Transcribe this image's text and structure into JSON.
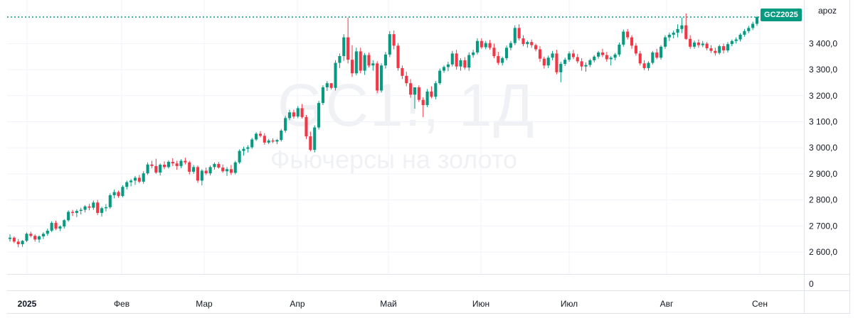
{
  "symbol_tag": "GCZ2025",
  "scale_mode_label": "apoz",
  "watermark": {
    "symbol": "GC1!, 1Д",
    "description": "Фьючерсы на золото"
  },
  "colors": {
    "up": "#089981",
    "down": "#f23645",
    "grid": "#f0f3fa",
    "axis_text": "#131722",
    "last_price_line": "#089981"
  },
  "chart_data": {
    "type": "candlestick",
    "title": "",
    "xlabel": "",
    "ylabel": "",
    "ylim": [
      2560,
      3530
    ],
    "y_ticks": [
      2600,
      2700,
      2800,
      2900,
      3000,
      3100,
      3200,
      3300,
      3400
    ],
    "y_tick_labels": [
      "2 600,0",
      "2 700,0",
      "2 800,0",
      "2 900,0",
      "3 000,0",
      "3 100,0",
      "3 200,0",
      "3 300,0",
      "3 400,0"
    ],
    "lower_pane_tick": "0",
    "x_tick_labels": [
      "2025",
      "Фев",
      "Мар",
      "Апр",
      "Май",
      "Июн",
      "Июл",
      "Авг",
      "Сен"
    ],
    "last_price": 3502,
    "candles": [
      [
        2650,
        2668,
        2640,
        2655
      ],
      [
        2655,
        2660,
        2634,
        2640
      ],
      [
        2640,
        2650,
        2618,
        2630
      ],
      [
        2630,
        2646,
        2620,
        2643
      ],
      [
        2643,
        2675,
        2638,
        2670
      ],
      [
        2670,
        2678,
        2656,
        2662
      ],
      [
        2662,
        2668,
        2640,
        2648
      ],
      [
        2648,
        2664,
        2636,
        2660
      ],
      [
        2660,
        2676,
        2650,
        2670
      ],
      [
        2670,
        2690,
        2662,
        2682
      ],
      [
        2682,
        2718,
        2676,
        2712
      ],
      [
        2712,
        2720,
        2684,
        2690
      ],
      [
        2690,
        2702,
        2680,
        2698
      ],
      [
        2698,
        2726,
        2690,
        2722
      ],
      [
        2722,
        2760,
        2716,
        2754
      ],
      [
        2754,
        2762,
        2738,
        2750
      ],
      [
        2750,
        2764,
        2734,
        2758
      ],
      [
        2758,
        2770,
        2744,
        2762
      ],
      [
        2762,
        2780,
        2752,
        2775
      ],
      [
        2775,
        2785,
        2760,
        2770
      ],
      [
        2770,
        2798,
        2762,
        2790
      ],
      [
        2790,
        2800,
        2742,
        2750
      ],
      [
        2750,
        2774,
        2736,
        2768
      ],
      [
        2768,
        2784,
        2756,
        2772
      ],
      [
        2772,
        2825,
        2766,
        2818
      ],
      [
        2818,
        2840,
        2806,
        2830
      ],
      [
        2830,
        2836,
        2808,
        2815
      ],
      [
        2815,
        2856,
        2810,
        2850
      ],
      [
        2850,
        2874,
        2840,
        2868
      ],
      [
        2868,
        2880,
        2852,
        2874
      ],
      [
        2874,
        2892,
        2858,
        2885
      ],
      [
        2885,
        2896,
        2864,
        2870
      ],
      [
        2870,
        2910,
        2862,
        2902
      ],
      [
        2902,
        2944,
        2896,
        2936
      ],
      [
        2936,
        2950,
        2922,
        2930
      ],
      [
        2930,
        2958,
        2900,
        2905
      ],
      [
        2905,
        2940,
        2894,
        2935
      ],
      [
        2935,
        2948,
        2918,
        2926
      ],
      [
        2926,
        2952,
        2920,
        2946
      ],
      [
        2946,
        2960,
        2930,
        2940
      ],
      [
        2940,
        2950,
        2916,
        2930
      ],
      [
        2930,
        2956,
        2922,
        2950
      ],
      [
        2950,
        2962,
        2936,
        2944
      ],
      [
        2944,
        2950,
        2898,
        2908
      ],
      [
        2908,
        2934,
        2900,
        2926
      ],
      [
        2926,
        2932,
        2866,
        2874
      ],
      [
        2874,
        2918,
        2856,
        2912
      ],
      [
        2912,
        2924,
        2896,
        2902
      ],
      [
        2902,
        2932,
        2894,
        2926
      ],
      [
        2926,
        2944,
        2916,
        2938
      ],
      [
        2938,
        2946,
        2920,
        2924
      ],
      [
        2924,
        2936,
        2904,
        2910
      ],
      [
        2910,
        2926,
        2892,
        2918
      ],
      [
        2918,
        2934,
        2896,
        2904
      ],
      [
        2904,
        2950,
        2898,
        2944
      ],
      [
        2944,
        2994,
        2938,
        2988
      ],
      [
        2988,
        3004,
        2970,
        2996
      ],
      [
        2996,
        3010,
        2982,
        3002
      ],
      [
        3002,
        3038,
        2996,
        3032
      ],
      [
        3032,
        3060,
        3026,
        3054
      ],
      [
        3054,
        3064,
        3040,
        3046
      ],
      [
        3046,
        3056,
        3012,
        3020
      ],
      [
        3020,
        3034,
        3014,
        3028
      ],
      [
        3028,
        3036,
        3018,
        3024
      ],
      [
        3024,
        3034,
        3014,
        3030
      ],
      [
        3030,
        3072,
        3024,
        3066
      ],
      [
        3066,
        3122,
        3058,
        3114
      ],
      [
        3114,
        3146,
        3106,
        3136
      ],
      [
        3136,
        3146,
        3112,
        3120
      ],
      [
        3120,
        3160,
        3114,
        3152
      ],
      [
        3152,
        3168,
        3112,
        3118
      ],
      [
        3118,
        3126,
        3034,
        3044
      ],
      [
        3044,
        3062,
        2986,
        2992
      ],
      [
        2992,
        3086,
        2982,
        3078
      ],
      [
        3078,
        3180,
        3070,
        3172
      ],
      [
        3172,
        3240,
        3164,
        3232
      ],
      [
        3232,
        3256,
        3218,
        3248
      ],
      [
        3248,
        3240,
        3224,
        3230
      ],
      [
        3230,
        3336,
        3220,
        3326
      ],
      [
        3326,
        3362,
        3306,
        3352
      ],
      [
        3352,
        3436,
        3334,
        3424
      ],
      [
        3424,
        3500,
        3324,
        3338
      ],
      [
        3338,
        3394,
        3272,
        3286
      ],
      [
        3286,
        3384,
        3278,
        3370
      ],
      [
        3370,
        3384,
        3286,
        3296
      ],
      [
        3296,
        3364,
        3280,
        3356
      ],
      [
        3356,
        3366,
        3308,
        3316
      ],
      [
        3316,
        3336,
        3296,
        3324
      ],
      [
        3324,
        3332,
        3210,
        3220
      ],
      [
        3220,
        3324,
        3212,
        3316
      ],
      [
        3316,
        3368,
        3304,
        3358
      ],
      [
        3358,
        3448,
        3348,
        3436
      ],
      [
        3436,
        3450,
        3378,
        3392
      ],
      [
        3392,
        3402,
        3296,
        3306
      ],
      [
        3306,
        3316,
        3264,
        3276
      ],
      [
        3276,
        3292,
        3236,
        3248
      ],
      [
        3248,
        3264,
        3192,
        3204
      ],
      [
        3204,
        3232,
        3150,
        3232
      ],
      [
        3232,
        3240,
        3176,
        3184
      ],
      [
        3184,
        3194,
        3118,
        3164
      ],
      [
        3164,
        3226,
        3156,
        3216
      ],
      [
        3216,
        3236,
        3190,
        3196
      ],
      [
        3196,
        3256,
        3186,
        3248
      ],
      [
        3248,
        3304,
        3242,
        3296
      ],
      [
        3296,
        3316,
        3288,
        3310
      ],
      [
        3310,
        3330,
        3294,
        3320
      ],
      [
        3320,
        3372,
        3312,
        3362
      ],
      [
        3362,
        3376,
        3300,
        3312
      ],
      [
        3312,
        3344,
        3296,
        3336
      ],
      [
        3336,
        3348,
        3300,
        3308
      ],
      [
        3308,
        3366,
        3296,
        3356
      ],
      [
        3356,
        3376,
        3346,
        3366
      ],
      [
        3366,
        3420,
        3358,
        3410
      ],
      [
        3410,
        3420,
        3380,
        3386
      ],
      [
        3386,
        3410,
        3378,
        3402
      ],
      [
        3402,
        3414,
        3376,
        3384
      ],
      [
        3384,
        3400,
        3344,
        3352
      ],
      [
        3352,
        3368,
        3318,
        3326
      ],
      [
        3326,
        3350,
        3316,
        3344
      ],
      [
        3344,
        3392,
        3336,
        3384
      ],
      [
        3384,
        3410,
        3374,
        3402
      ],
      [
        3402,
        3470,
        3394,
        3460
      ],
      [
        3460,
        3474,
        3412,
        3420
      ],
      [
        3420,
        3432,
        3390,
        3398
      ],
      [
        3398,
        3412,
        3384,
        3406
      ],
      [
        3406,
        3416,
        3384,
        3394
      ],
      [
        3394,
        3400,
        3370,
        3378
      ],
      [
        3378,
        3390,
        3330,
        3342
      ],
      [
        3342,
        3350,
        3304,
        3316
      ],
      [
        3316,
        3354,
        3306,
        3346
      ],
      [
        3346,
        3372,
        3336,
        3362
      ],
      [
        3362,
        3376,
        3282,
        3290
      ],
      [
        3290,
        3330,
        3252,
        3322
      ],
      [
        3322,
        3346,
        3314,
        3338
      ],
      [
        3338,
        3370,
        3330,
        3362
      ],
      [
        3362,
        3376,
        3340,
        3348
      ],
      [
        3348,
        3360,
        3324,
        3332
      ],
      [
        3332,
        3344,
        3296,
        3312
      ],
      [
        3312,
        3328,
        3292,
        3318
      ],
      [
        3318,
        3342,
        3310,
        3336
      ],
      [
        3336,
        3356,
        3328,
        3350
      ],
      [
        3350,
        3372,
        3342,
        3366
      ],
      [
        3366,
        3380,
        3348,
        3356
      ],
      [
        3356,
        3368,
        3330,
        3340
      ],
      [
        3340,
        3352,
        3316,
        3346
      ],
      [
        3346,
        3364,
        3336,
        3358
      ],
      [
        3358,
        3404,
        3350,
        3396
      ],
      [
        3396,
        3454,
        3388,
        3446
      ],
      [
        3446,
        3456,
        3416,
        3424
      ],
      [
        3424,
        3432,
        3380,
        3392
      ],
      [
        3392,
        3402,
        3354,
        3362
      ],
      [
        3362,
        3372,
        3316,
        3324
      ],
      [
        3324,
        3336,
        3298,
        3306
      ],
      [
        3306,
        3332,
        3296,
        3326
      ],
      [
        3326,
        3372,
        3320,
        3366
      ],
      [
        3366,
        3380,
        3340,
        3346
      ],
      [
        3346,
        3394,
        3338,
        3388
      ],
      [
        3388,
        3432,
        3380,
        3424
      ],
      [
        3424,
        3442,
        3410,
        3434
      ],
      [
        3434,
        3450,
        3420,
        3442
      ],
      [
        3442,
        3474,
        3424,
        3456
      ],
      [
        3456,
        3500,
        3440,
        3470
      ],
      [
        3470,
        3516,
        3414,
        3418
      ],
      [
        3418,
        3432,
        3380,
        3388
      ],
      [
        3388,
        3412,
        3380,
        3404
      ],
      [
        3404,
        3416,
        3384,
        3394
      ],
      [
        3394,
        3410,
        3386,
        3400
      ],
      [
        3400,
        3406,
        3374,
        3382
      ],
      [
        3382,
        3394,
        3364,
        3372
      ],
      [
        3372,
        3384,
        3354,
        3364
      ],
      [
        3364,
        3396,
        3358,
        3390
      ],
      [
        3390,
        3400,
        3362,
        3374
      ],
      [
        3374,
        3406,
        3366,
        3398
      ],
      [
        3398,
        3416,
        3390,
        3410
      ],
      [
        3410,
        3424,
        3400,
        3416
      ],
      [
        3416,
        3440,
        3408,
        3434
      ],
      [
        3434,
        3456,
        3426,
        3448
      ],
      [
        3448,
        3468,
        3440,
        3460
      ],
      [
        3460,
        3484,
        3452,
        3476
      ],
      [
        3476,
        3506,
        3468,
        3502
      ]
    ]
  }
}
